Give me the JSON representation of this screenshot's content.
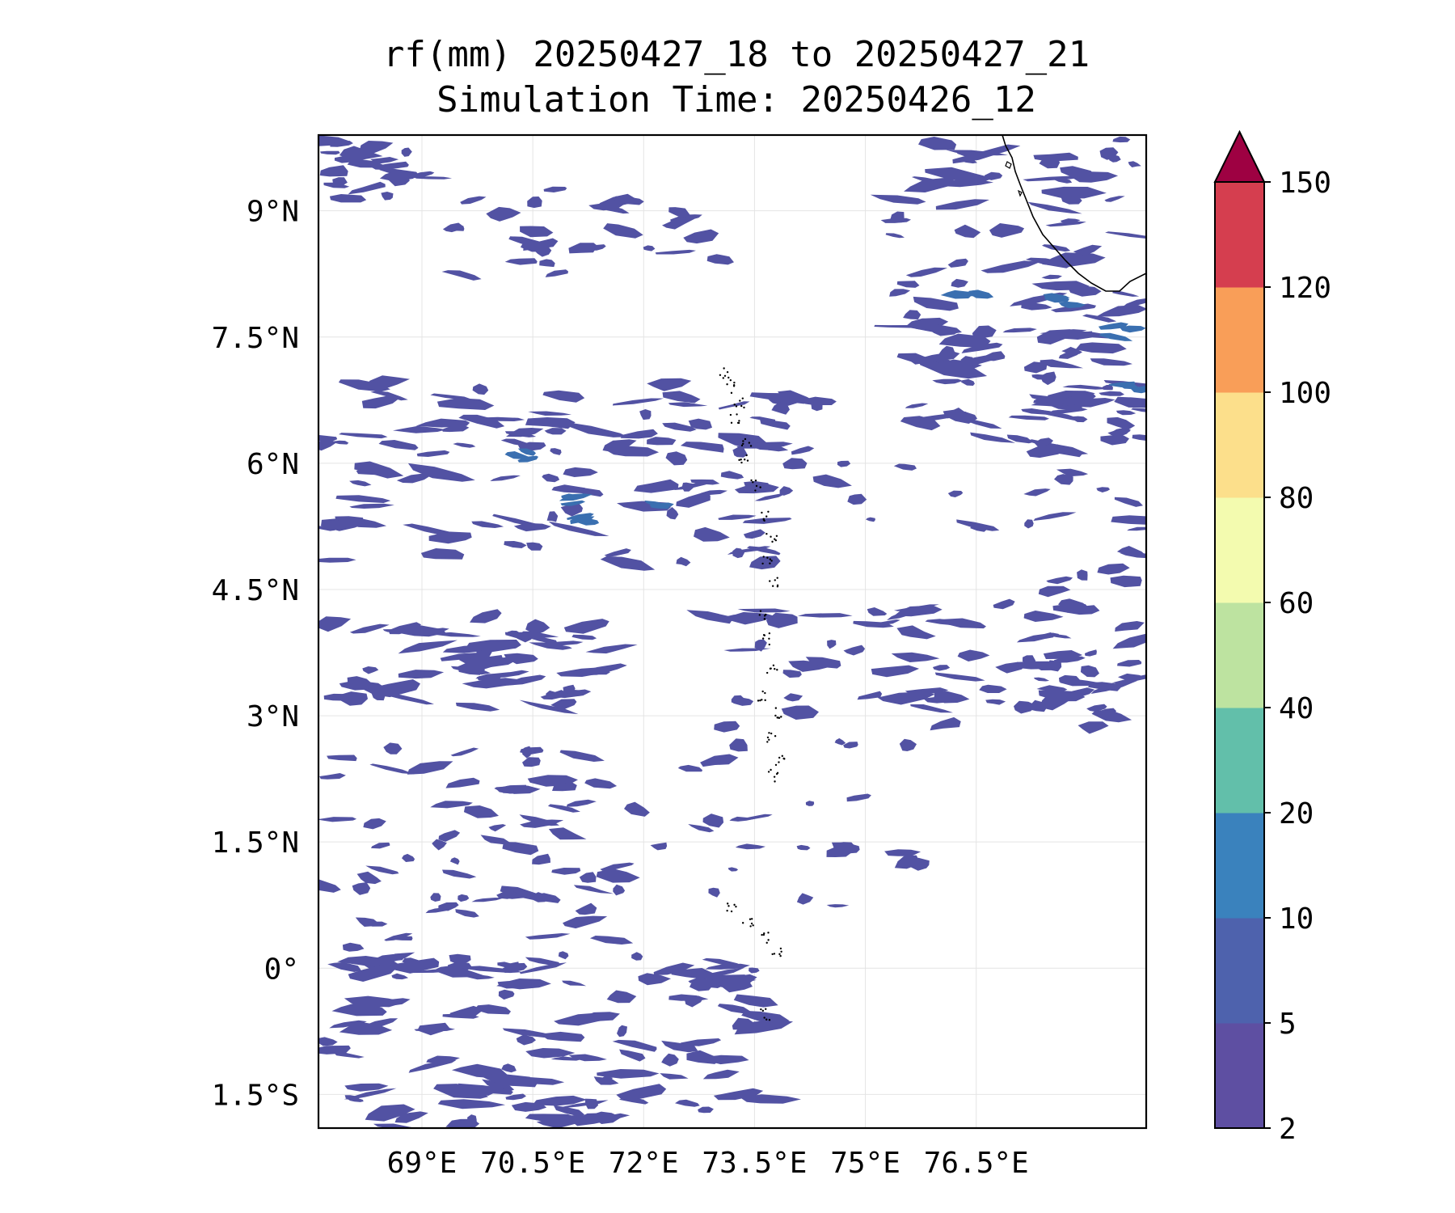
{
  "title": {
    "line1": "rf(mm) 20250427_18 to 20250427_21",
    "line2": "Simulation Time: 20250426_12"
  },
  "map": {
    "lon_range": [
      67.6,
      78.8
    ],
    "lat_range": [
      -1.9,
      9.9
    ],
    "lon_ticks": [
      {
        "value": 69.0,
        "label": "69°E"
      },
      {
        "value": 70.5,
        "label": "70.5°E"
      },
      {
        "value": 72.0,
        "label": "72°E"
      },
      {
        "value": 73.5,
        "label": "73.5°E"
      },
      {
        "value": 75.0,
        "label": "75°E"
      },
      {
        "value": 76.5,
        "label": "76.5°E"
      }
    ],
    "lat_ticks": [
      {
        "value": 9.0,
        "label": "9°N"
      },
      {
        "value": 7.5,
        "label": "7.5°N"
      },
      {
        "value": 6.0,
        "label": "6°N"
      },
      {
        "value": 4.5,
        "label": "4.5°N"
      },
      {
        "value": 3.0,
        "label": "3°N"
      },
      {
        "value": 1.5,
        "label": "1.5°N"
      },
      {
        "value": 0.0,
        "label": "0°"
      },
      {
        "value": -1.5,
        "label": "1.5°S"
      }
    ],
    "grid": true,
    "field_color": "#5252a3",
    "field_color_strong": "#3a6fb0",
    "coastline_color": "#000000"
  },
  "colorbar": {
    "levels": [
      "2",
      "5",
      "10",
      "20",
      "40",
      "60",
      "80",
      "100",
      "120",
      "150"
    ],
    "colors": [
      "#5e4fa2",
      "#4e62ad",
      "#3a82bd",
      "#62bfaa",
      "#bde3a0",
      "#f3fbaf",
      "#fcdf8b",
      "#f99e58",
      "#d53e4f"
    ],
    "extend_color": "#9e0142",
    "extend": "max"
  }
}
